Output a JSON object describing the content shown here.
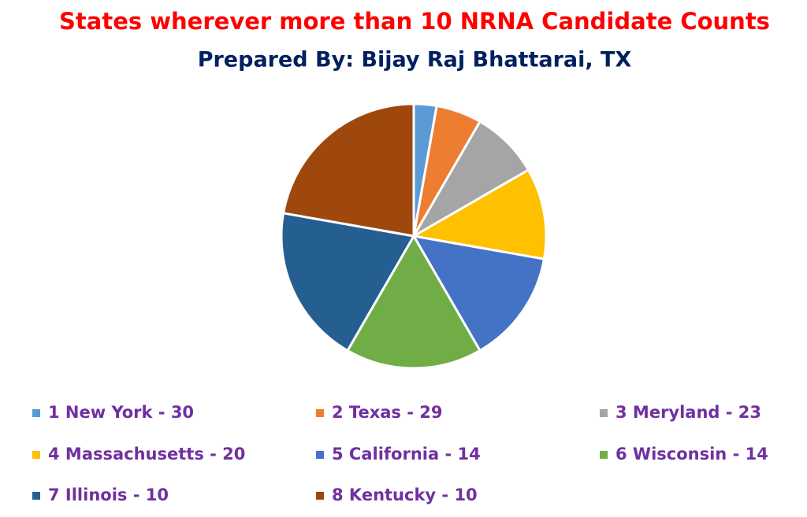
{
  "chart_data": {
    "type": "pie",
    "title": "States wherever more than 10 NRNA Candidate Counts",
    "subtitle": "Prepared By: Bijay Raj Bhattarai, TX",
    "categories": [
      "1 New York - 30",
      "2 Texas - 29",
      "3 Meryland - 23",
      "4 Massachusetts - 20",
      "5 California - 14",
      "6 Wisconsin - 14",
      "7 Illinois - 10",
      "8 Kentucky - 10"
    ],
    "values": [
      1,
      2,
      3,
      4,
      5,
      6,
      7,
      8
    ],
    "colors": [
      "#5b9bd5",
      "#ed7d31",
      "#a5a5a5",
      "#ffc000",
      "#4472c4",
      "#70ad47",
      "#255e91",
      "#9e480e"
    ],
    "legend": "bottom"
  }
}
